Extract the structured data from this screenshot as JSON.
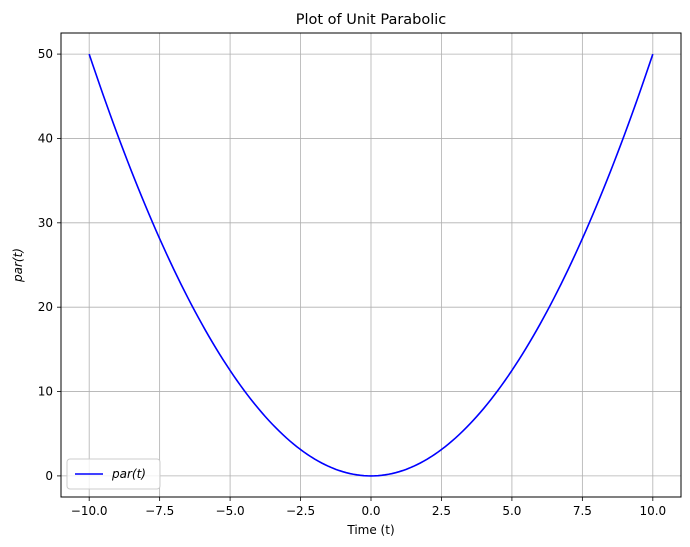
{
  "chart_data": {
    "type": "line",
    "title": "Plot of Unit Parabolic",
    "xlabel": "Time (t)",
    "ylabel": "par(t)",
    "xlim": [
      -11,
      11
    ],
    "ylim": [
      -2.5,
      52.5
    ],
    "xticks": [
      -10.0,
      -7.5,
      -5.0,
      -2.5,
      0.0,
      2.5,
      5.0,
      7.5,
      10.0
    ],
    "xtick_labels": [
      "−10.0",
      "−7.5",
      "−5.0",
      "−2.5",
      "0.0",
      "2.5",
      "5.0",
      "7.5",
      "10.0"
    ],
    "yticks": [
      0,
      10,
      20,
      30,
      40,
      50
    ],
    "ytick_labels": [
      "0",
      "10",
      "20",
      "30",
      "40",
      "50"
    ],
    "grid": true,
    "legend": "lower-left",
    "series": [
      {
        "name": "par(t)",
        "color": "#0000ff",
        "x": [
          -10,
          -9,
          -8,
          -7,
          -6,
          -5,
          -4,
          -3,
          -2,
          -1,
          0,
          1,
          2,
          3,
          4,
          5,
          6,
          7,
          8,
          9,
          10
        ],
        "y": [
          50,
          40.5,
          32,
          24.5,
          18,
          12.5,
          8,
          4.5,
          2,
          0.5,
          0,
          0.5,
          2,
          4.5,
          8,
          12.5,
          18,
          24.5,
          32,
          40.5,
          50
        ]
      }
    ]
  }
}
